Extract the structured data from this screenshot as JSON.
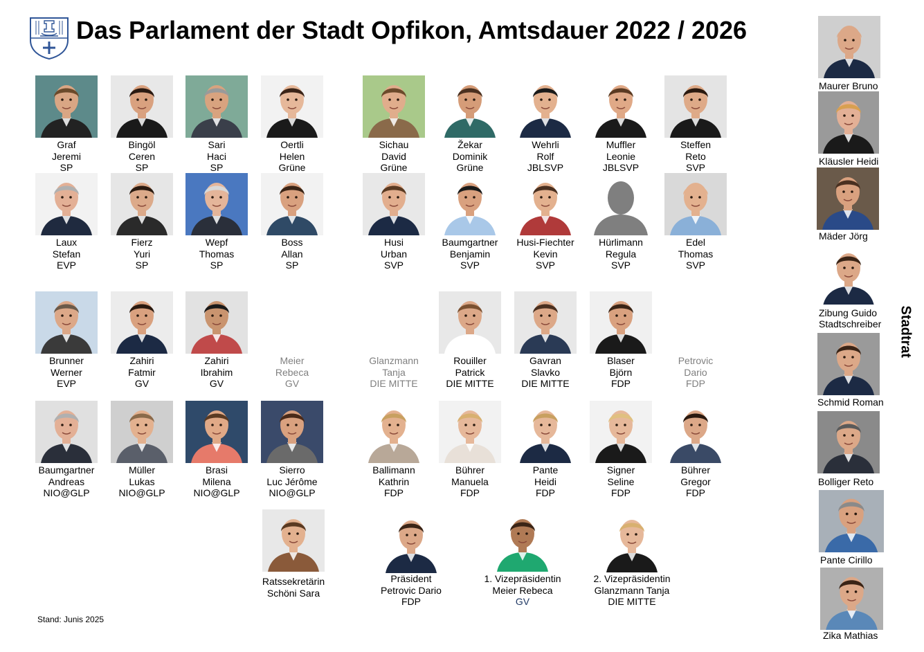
{
  "title": "Das Parlament der Stadt Opfikon, Amtsdauer 2022 / 2026",
  "stand": "Stand: Junis 2025",
  "stadtrat_heading": "Stadtrat",
  "crest_icon": "opfikon-coat-of-arms-icon",
  "members": [
    {
      "name": "Graf",
      "first": "Jeremi",
      "party": "SP",
      "bg": "#5d8a8a",
      "shirt": "#222222",
      "skin": "#d9a684",
      "hair": "#6b4a2b"
    },
    {
      "name": "Bingöl",
      "first": "Ceren",
      "party": "SP",
      "bg": "#e8e8e8",
      "shirt": "#1a1a1a",
      "skin": "#d9a17f",
      "hair": "#2a1a12"
    },
    {
      "name": "Sari",
      "first": "Haci",
      "party": "SP",
      "bg": "#7faa98",
      "shirt": "#3a3f4a",
      "skin": "#d8a37f",
      "hair": "#9a9a9a"
    },
    {
      "name": "Oertli",
      "first": "Helen",
      "party": "Grüne",
      "bg": "#f2f2f2",
      "shirt": "#1a1a1a",
      "skin": "#e6b89a",
      "hair": "#3a2418"
    },
    {
      "name": "Sichau",
      "first": "David",
      "party": "Grüne",
      "bg": "#a9c98a",
      "shirt": "#8a6a4a",
      "skin": "#e0ad8c",
      "hair": "#6b4a2b"
    },
    {
      "name": "Žekar",
      "first": "Dominik",
      "party": "Grüne",
      "bg": "#ffffff",
      "shirt": "#2f6a66",
      "skin": "#d59c78",
      "hair": "#4a3020"
    },
    {
      "name": "Wehrli",
      "first": "Rolf",
      "party": "JBLSVP",
      "bg": "#ffffff",
      "shirt": "#1c2a44",
      "skin": "#e3b18f",
      "hair": "#1a1a1a"
    },
    {
      "name": "Muffler",
      "first": "Leonie",
      "party": "JBLSVP",
      "bg": "#ffffff",
      "shirt": "#1a1a1a",
      "skin": "#e0a987",
      "hair": "#5a3a22"
    },
    {
      "name": "Steffen",
      "first": "Reto",
      "party": "SVP",
      "bg": "#e4e4e4",
      "shirt": "#1a1a1a",
      "skin": "#deaa88",
      "hair": "#2a1a10"
    },
    {
      "name": "Laux",
      "first": "Stefan",
      "party": "EVP",
      "bg": "#f2f2f2",
      "shirt": "#1f2a3f",
      "skin": "#e3b096",
      "hair": "#b0b0b0"
    },
    {
      "name": "Fierz",
      "first": "Yuri",
      "party": "SP",
      "bg": "#e6e6e6",
      "shirt": "#2a2a2a",
      "skin": "#dcaa8a",
      "hair": "#2a1a10"
    },
    {
      "name": "Wepf",
      "first": "Thomas",
      "party": "SP",
      "bg": "#4a78c0",
      "shirt": "#2a2f3a",
      "skin": "#e4b59a",
      "hair": "#d8d8d8"
    },
    {
      "name": "Boss",
      "first": "Allan",
      "party": "SP",
      "bg": "#f2f2f2",
      "shirt": "#2f4a66",
      "skin": "#d9a17f",
      "hair": "#3a2416"
    },
    {
      "name": "Husi",
      "first": "Urban",
      "party": "SVP",
      "bg": "#e8e8e8",
      "shirt": "#1c2a44",
      "skin": "#e2ae8e",
      "hair": "#5a3a22"
    },
    {
      "name": "Baumgartner",
      "first": "Benjamin",
      "party": "SVP",
      "bg": "#ffffff",
      "shirt": "#a9c8e8",
      "skin": "#d9a17f",
      "hair": "#1a1a1a"
    },
    {
      "name": "Husi-Fiechter",
      "first": "Kevin",
      "party": "SVP",
      "bg": "#ffffff",
      "shirt": "#b03a3a",
      "skin": "#e3b18f",
      "hair": "#4a3020"
    },
    {
      "name": "Hürlimann",
      "first": "Regula",
      "party": "SVP",
      "bg": "#ffffff",
      "shirt": "#7f7f7f",
      "skin": "#7f7f7f",
      "hair": "#7f7f7f",
      "placeholder": true
    },
    {
      "name": "Edel",
      "first": "Thomas",
      "party": "SVP",
      "bg": "#d9d9d9",
      "shirt": "#8ab0d8",
      "skin": "#e3b18f",
      "hair": "#e3b18f"
    },
    {
      "name": "Brunner",
      "first": "Werner",
      "party": "EVP",
      "bg": "#c9d9e8",
      "shirt": "#3a3a3a",
      "skin": "#dca888",
      "hair": "#6b5a4a"
    },
    {
      "name": "Zahiri",
      "first": "Fatmir",
      "party": "GV",
      "bg": "#ececec",
      "shirt": "#1c2a44",
      "skin": "#d9a17f",
      "hair": "#2a1a10"
    },
    {
      "name": "Zahiri",
      "first": "Ibrahim",
      "party": "GV",
      "bg": "#e2e2e2",
      "shirt": "#c04a4a",
      "skin": "#c9946f",
      "hair": "#1a1a1a"
    },
    {
      "name": "Meier",
      "first": "Rebeca",
      "party": "GV",
      "vacant": true
    },
    {
      "name": "Glanzmann",
      "first": "Tanja",
      "party": "DIE MITTE",
      "vacant": true
    },
    {
      "name": "Rouiller",
      "first": "Patrick",
      "party": "DIE MITTE",
      "bg": "#e8e8e8",
      "shirt": "#ffffff",
      "skin": "#dca888",
      "hair": "#7a5030"
    },
    {
      "name": "Gavran",
      "first": "Slavko",
      "party": "DIE MITTE",
      "bg": "#e8e8e8",
      "shirt": "#2a3a55",
      "skin": "#dca888",
      "hair": "#4a3020"
    },
    {
      "name": "Blaser",
      "first": "Björn",
      "party": "FDP",
      "bg": "#f0f0f0",
      "shirt": "#1a1a1a",
      "skin": "#d9a17f",
      "hair": "#3a2416"
    },
    {
      "name": "Petrovic",
      "first": "Dario",
      "party": "FDP",
      "vacant": true
    },
    {
      "name": "Baumgartner",
      "first": "Andreas",
      "party": "NIO@GLP",
      "bg": "#e0e0e0",
      "shirt": "#2a2f3a",
      "skin": "#e3b096",
      "hair": "#b0b0b0"
    },
    {
      "name": "Müller",
      "first": "Lukas",
      "party": "NIO@GLP",
      "bg": "#cfcfcf",
      "shirt": "#5a5f6a",
      "skin": "#e3b18f",
      "hair": "#8a6a4a"
    },
    {
      "name": "Brasi",
      "first": "Milena",
      "party": "NIO@GLP",
      "bg": "#2f4a6a",
      "shirt": "#e67a6a",
      "skin": "#e0a987",
      "hair": "#5a3a22"
    },
    {
      "name": "Sierro",
      "first": "Luc Jérôme",
      "party": "NIO@GLP",
      "bg": "#3a4a6a",
      "shirt": "#6a6a6a",
      "skin": "#d9a17f",
      "hair": "#4a2a18"
    },
    {
      "name": "Ballimann",
      "first": "Kathrin",
      "party": "FDP",
      "bg": "#ffffff",
      "shirt": "#b8a898",
      "skin": "#e3b18f",
      "hair": "#c8a060"
    },
    {
      "name": "Bührer",
      "first": "Manuela",
      "party": "FDP",
      "bg": "#f2f2f2",
      "shirt": "#e8e0d8",
      "skin": "#e6b89a",
      "hair": "#d8b070"
    },
    {
      "name": "Pante",
      "first": "Heidi",
      "party": "FDP",
      "bg": "#ffffff",
      "shirt": "#1c2a44",
      "skin": "#e6b89a",
      "hair": "#c8a060"
    },
    {
      "name": "Signer",
      "first": "Seline",
      "party": "FDP",
      "bg": "#f2f2f2",
      "shirt": "#1a1a1a",
      "skin": "#e6b89a",
      "hair": "#e0c080"
    },
    {
      "name": "Bührer",
      "first": "Gregor",
      "party": "FDP",
      "bg": "#ffffff",
      "shirt": "#3a4a66",
      "skin": "#dca888",
      "hair": "#2a1a10"
    }
  ],
  "officials": [
    {
      "line1": "Ratssekretärin",
      "line2": "Schöni Sara",
      "line3": "",
      "bg": "#e8e8e8",
      "shirt": "#8a5a3a",
      "skin": "#e3b18f",
      "hair": "#5a3a22"
    },
    {
      "line1": "Präsident",
      "line2": "Petrovic Dario",
      "line3": "FDP",
      "bg": "#ffffff",
      "shirt": "#1c2a44",
      "skin": "#dca888",
      "hair": "#3a2416"
    },
    {
      "line1": "1. Vizepräsidentin",
      "line2": "Meier Rebeca",
      "line3": "GV",
      "bg": "#ffffff",
      "shirt": "#1fa870",
      "skin": "#b07a55",
      "hair": "#3a2416"
    },
    {
      "line1": "2. Vizepräsidentin",
      "line2": "Glanzmann Tanja",
      "line3": "DIE MITTE",
      "bg": "#ffffff",
      "shirt": "#1a1a1a",
      "skin": "#e6b89a",
      "hair": "#d8b070"
    }
  ],
  "stadtrat": [
    {
      "name": "Maurer Bruno",
      "role": "",
      "bg": "#cfcfcf",
      "shirt": "#1c2a44",
      "skin": "#dca888",
      "hair": "#dca888"
    },
    {
      "name": "Kläusler Heidi",
      "role": "",
      "bg": "#9a9a9a",
      "shirt": "#1a1a1a",
      "skin": "#e3b096",
      "hair": "#d8a050"
    },
    {
      "name": "Mäder Jörg",
      "role": "",
      "bg": "#6a5a4a",
      "shirt": "#2a4a88",
      "skin": "#d9a17f",
      "hair": "#4a3020"
    },
    {
      "name": "Zibung Guido",
      "role": "Stadtschreiber",
      "bg": "#ffffff",
      "shirt": "#1c2a44",
      "skin": "#dca888",
      "hair": "#3a2416"
    },
    {
      "name": "Schmid Roman",
      "role": "",
      "bg": "#9a9a9a",
      "shirt": "#1c2a44",
      "skin": "#dca888",
      "hair": "#3a2416"
    },
    {
      "name": "Bolliger Reto",
      "role": "",
      "bg": "#8a8a8a",
      "shirt": "#2a2f3a",
      "skin": "#dca888",
      "hair": "#5a5a5a"
    },
    {
      "name": "Pante Cirillo",
      "role": "",
      "bg": "#a8b0b8",
      "shirt": "#3a6aa8",
      "skin": "#d9a17f",
      "hair": "#8a8a8a"
    },
    {
      "name": "Zika Mathias",
      "role": "",
      "bg": "#b0b0b0",
      "shirt": "#5a88b8",
      "skin": "#dca888",
      "hair": "#3a2416"
    }
  ]
}
